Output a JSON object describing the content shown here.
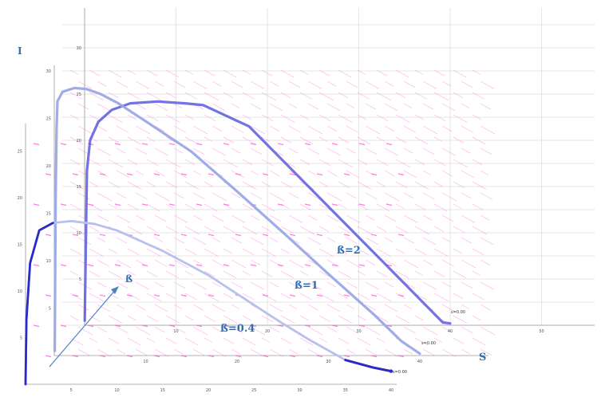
{
  "chart_data": {
    "type": "line",
    "title": "",
    "xlabel": "S",
    "ylabel": "I",
    "depth_axis_label": "ß",
    "grid": true,
    "colors": {
      "back_curve": "#5a5ae0",
      "mid_curve": "#9aa8e6",
      "front_curve": "#2a2ac8",
      "front_curve_fade": "#b8c0ee",
      "field_arrows": "#ff6fd8",
      "grid": "#dcdcdc",
      "axis_label": "#2f6db5"
    },
    "planes": [
      {
        "beta_label": "ß=2",
        "end_label": "s=0.00",
        "x_ticks": [
          10,
          20,
          30,
          40,
          50
        ],
        "y_ticks": [
          5,
          10,
          15,
          20,
          25,
          30
        ],
        "trajectory": [
          [
            40,
            0.2
          ],
          [
            39.2,
            0.3
          ],
          [
            38,
            1.5
          ],
          [
            35,
            4.5
          ],
          [
            30,
            9.5
          ],
          [
            25,
            14.5
          ],
          [
            20,
            19.5
          ],
          [
            18,
            21.5
          ],
          [
            13,
            23.8
          ],
          [
            11,
            24
          ],
          [
            8,
            24.2
          ],
          [
            5,
            24
          ],
          [
            3,
            23.3
          ],
          [
            1.5,
            22
          ],
          [
            0.6,
            20
          ],
          [
            0.25,
            16.7
          ],
          [
            0.05,
            3
          ],
          [
            0.02,
            0.5
          ]
        ]
      },
      {
        "beta_label": "ß=1",
        "end_label": "s=0.00",
        "x_ticks": [
          10,
          20,
          30,
          40
        ],
        "y_ticks": [
          5,
          10,
          15,
          20,
          25,
          30
        ],
        "trajectory": [
          [
            40,
            0.2
          ],
          [
            38,
            1.5
          ],
          [
            35,
            4.3
          ],
          [
            30,
            8.6
          ],
          [
            25,
            13
          ],
          [
            20,
            17.3
          ],
          [
            15,
            21.5
          ],
          [
            10,
            24.7
          ],
          [
            7,
            26.6
          ],
          [
            5,
            27.6
          ],
          [
            3.5,
            28.1
          ],
          [
            2.2,
            28.2
          ],
          [
            0.9,
            27.8
          ],
          [
            0.35,
            26.8
          ],
          [
            0.25,
            24
          ],
          [
            0.15,
            16.5
          ],
          [
            0.05,
            0.5
          ]
        ]
      },
      {
        "beta_label": "ß=0.4",
        "end_label": "s=0.00",
        "x_ticks": [
          5,
          10,
          15,
          20,
          25,
          30,
          35,
          40
        ],
        "y_ticks": [
          5,
          10,
          15,
          20,
          25
        ],
        "trajectory": [
          [
            40,
            1.4
          ],
          [
            38,
            1.8
          ],
          [
            35,
            2.6
          ],
          [
            31,
            4.8
          ],
          [
            28,
            6.6
          ],
          [
            25,
            8.5
          ],
          [
            20,
            11.7
          ],
          [
            15,
            14.3
          ],
          [
            10,
            16.5
          ],
          [
            7.5,
            17.2
          ],
          [
            5,
            17.5
          ],
          [
            3,
            17.3
          ],
          [
            1.5,
            16.5
          ],
          [
            0.5,
            13
          ],
          [
            0.1,
            7
          ],
          [
            0,
            0
          ]
        ]
      }
    ]
  }
}
